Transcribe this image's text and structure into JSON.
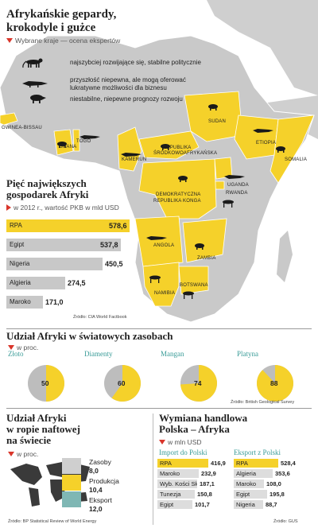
{
  "header": {
    "title_line1": "Afrykańskie gepardy,",
    "title_line2": "krokodyle i gużce",
    "subtitle": "Wybrane kraje — ocena ekspertów"
  },
  "legend": {
    "items": [
      {
        "icon": "cheetah-icon",
        "label1": "najszybciej rozwijające się, stabilne politycznie",
        "label2": ""
      },
      {
        "icon": "crocodile-icon",
        "label1": "przyszłość niepewna, ale mogą oferować",
        "label2": "lukratywne możliwości dla biznesu"
      },
      {
        "icon": "warthog-icon",
        "label1": "niestabilne, niepewne prognozy rozwoju",
        "label2": ""
      }
    ]
  },
  "map": {
    "countries": {
      "guinea_bissau": "GWINEA-BISSAU",
      "ghana": "GHANA",
      "togo": "TOGO",
      "cameroon": "KAMERUN",
      "car1": "REPUBLIKA",
      "car2": "ŚRODKOWOAFRYKAŃSKA",
      "sudan": "SUDAN",
      "ethiopia": "ETIOPIA",
      "somalia": "SOMALIA",
      "uganda": "UGANDA",
      "rwanda": "RWANDA",
      "drc1": "DEMOKRATYCZNA",
      "drc2": "REPUBLIKA KONGA",
      "angola": "ANGOLA",
      "zambia": "ZAMBIA",
      "namibia": "NAMIBIA",
      "botswana": "BOTSWANA"
    },
    "colors": {
      "highlight": "#f5d12a",
      "land": "#c9c9c9",
      "water": "#ffffff"
    }
  },
  "economies": {
    "title1": "Pięć największych",
    "title2": "gospodarek Afryki",
    "subtitle": "w 2012 r., wartość PKB w mld USD",
    "source": "Źródło: CIA World Factbook",
    "chart_data": {
      "type": "bar",
      "categories": [
        "RPA",
        "Egipt",
        "Nigeria",
        "Algieria",
        "Maroko"
      ],
      "values": [
        578.6,
        537.8,
        450.5,
        274.5,
        171.0
      ],
      "labels": [
        "578,6",
        "537,8",
        "450,5",
        "274,5",
        "171,0"
      ],
      "highlight": "RPA"
    }
  },
  "resources": {
    "title": "Udział Afryki w światowych zasobach",
    "subtitle": "w proc.",
    "source": "Źródło: British Geological Survey",
    "chart_data": {
      "type": "pie",
      "items": [
        {
          "name": "Złoto",
          "value": 50,
          "label": "50"
        },
        {
          "name": "Diamenty",
          "value": 60,
          "label": "60"
        },
        {
          "name": "Mangan",
          "value": 74,
          "label": "74"
        },
        {
          "name": "Platyna",
          "value": 88,
          "label": "88"
        }
      ]
    }
  },
  "oil": {
    "title1": "Udział Afryki",
    "title2": "w ropie naftowej",
    "title3": "na świecie",
    "subtitle": "w proc.",
    "source": "Źródło: BP Statistical Review of World Energy",
    "items": [
      {
        "name": "Zasoby",
        "value": "8,0"
      },
      {
        "name": "Produkcja",
        "value": "10,4"
      },
      {
        "name": "Eksport",
        "value": "12,0"
      }
    ]
  },
  "trade": {
    "title1": "Wymiana handlowa",
    "title2": "Polska – Afryka",
    "subtitle": "w mln USD",
    "source": "Źródło: GUS",
    "import_header": "Import do Polski",
    "export_header": "Eksport z Polski",
    "chart_data": {
      "type": "table",
      "import": [
        {
          "name": "RPA",
          "value": 416.9,
          "label": "416,9"
        },
        {
          "name": "Maroko",
          "value": 232.9,
          "label": "232,9"
        },
        {
          "name": "Wyb. Kości Słoniowej",
          "value": 187.1,
          "label": "187,1"
        },
        {
          "name": "Tunezja",
          "value": 150.8,
          "label": "150,8"
        },
        {
          "name": "Egipt",
          "value": 101.7,
          "label": "101,7"
        }
      ],
      "export": [
        {
          "name": "RPA",
          "value": 528.4,
          "label": "528,4"
        },
        {
          "name": "Algieria",
          "value": 353.6,
          "label": "353,6"
        },
        {
          "name": "Maroko",
          "value": 108.0,
          "label": "108,0"
        },
        {
          "name": "Egipt",
          "value": 195.8,
          "label": "195,8"
        },
        {
          "name": "Nigeria",
          "value": 88.7,
          "label": "88,7"
        }
      ]
    }
  }
}
